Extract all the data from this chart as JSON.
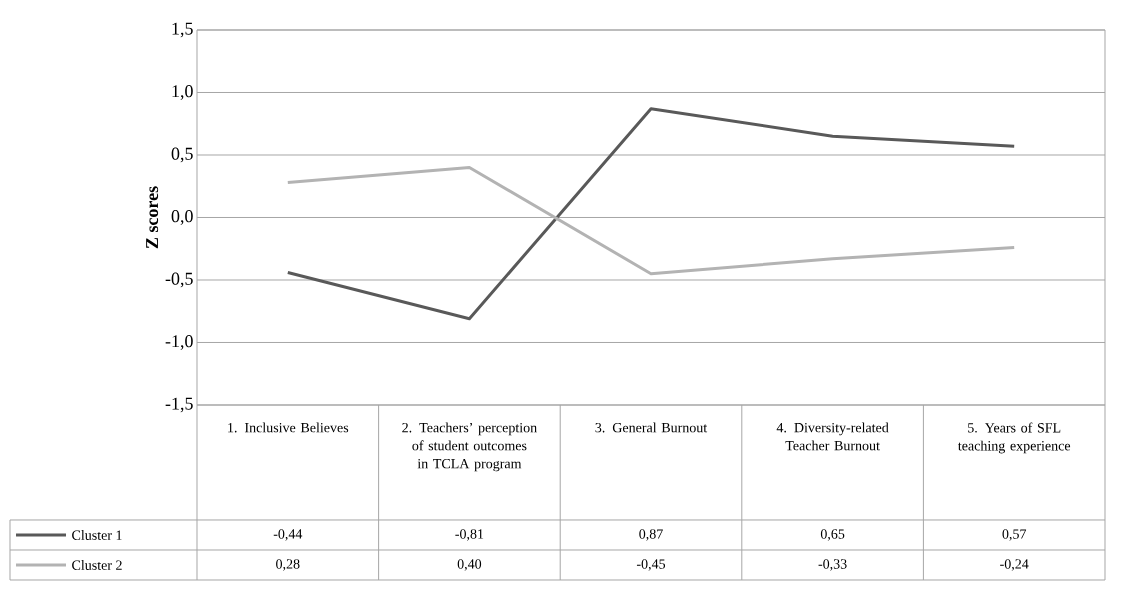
{
  "chart_data": {
    "type": "line",
    "ylabel": "Z scores",
    "categories": [
      "1. Inclusive Believes",
      "2. Teachers’ perception of student outcomes in TCLA program",
      "3. General Burnout",
      "4. Diversity-related Teacher Burnout",
      "5. Years of SFL teaching experience"
    ],
    "series": [
      {
        "name": "Cluster 1",
        "color": "#595959",
        "values": [
          -0.44,
          -0.81,
          0.87,
          0.65,
          0.57
        ],
        "value_labels": [
          "-0,44",
          "-0,81",
          "0,87",
          "0,65",
          "0,57"
        ]
      },
      {
        "name": "Cluster 2",
        "color": "#b3b3b3",
        "values": [
          0.28,
          0.4,
          -0.45,
          -0.33,
          -0.24
        ],
        "value_labels": [
          "0,28",
          "0,40",
          "-0,45",
          "-0,33",
          "-0,24"
        ]
      }
    ],
    "ylim": [
      -1.5,
      1.5
    ],
    "yticks": [
      {
        "value": -1.5,
        "label": "-1,5"
      },
      {
        "value": -1.0,
        "label": "-1,0"
      },
      {
        "value": -0.5,
        "label": "-0,5"
      },
      {
        "value": 0.0,
        "label": "0,0"
      },
      {
        "value": 0.5,
        "label": "0,5"
      },
      {
        "value": 1.0,
        "label": "1,0"
      },
      {
        "value": 1.5,
        "label": "1,5"
      }
    ],
    "grid": "y",
    "legend": "bottom"
  }
}
